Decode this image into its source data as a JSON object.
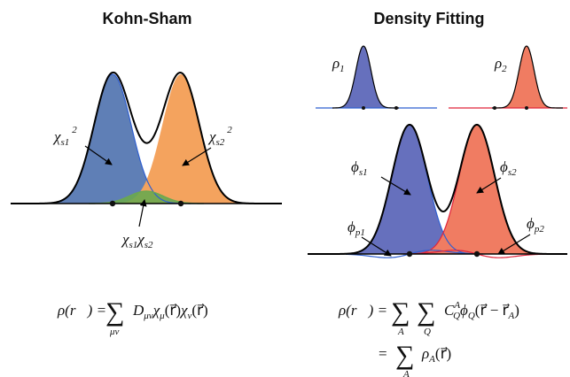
{
  "colors": {
    "blue_fill": "#5f7fb6",
    "orange_fill": "#f4a35e",
    "green_fill": "#6aa84f",
    "violet_fill": "#6670bd",
    "salmon_fill": "#f07c62",
    "blue_line": "#2f5fd0",
    "red_line": "#e0243b",
    "black_line": "#000000"
  },
  "left": {
    "title": "Kohn-Sham",
    "label_chi_s1": "χ",
    "label_chi_s1_sub": "s1",
    "label_chi_s1_sup": "2",
    "label_chi_s2": "χ",
    "label_chi_s2_sub": "s2",
    "label_chi_s2_sup": "2",
    "label_product_a": "χ",
    "label_product_a_sub": "s1",
    "label_product_b": "χ",
    "label_product_b_sub": "s2",
    "equation": {
      "lhs": "ρ(r⃗) =",
      "sum": "∑",
      "sum_lower": "μν",
      "rhs_d": "D",
      "rhs_d_sub": "μν",
      "rhs_chi1": "χ",
      "rhs_chi1_sub": "μ",
      "rhs_arg1": "(r⃗)",
      "rhs_chi2": "χ",
      "rhs_chi2_sub": "ν",
      "rhs_arg2": "(r⃗)"
    }
  },
  "right": {
    "title": "Density Fitting",
    "rho1": "ρ",
    "rho1_sub": "1",
    "rho2": "ρ",
    "rho2_sub": "2",
    "phi_s1": "ϕ",
    "phi_s1_sub": "s1",
    "phi_s2": "ϕ",
    "phi_s2_sub": "s2",
    "phi_p1": "ϕ",
    "phi_p1_sub": "p1",
    "phi_p2": "ϕ",
    "phi_p2_sub": "p2",
    "equation": {
      "lhs": "ρ(r⃗) =",
      "sum1": "∑",
      "sum1_lower": "A",
      "sum2": "∑",
      "sum2_lower": "Q",
      "c": "C",
      "c_sub": "Q",
      "c_sup": "A",
      "phi": "ϕ",
      "phi_sub": "Q",
      "arg": "(r⃗ − r⃗",
      "arg_sub": "A",
      "arg_close": ")",
      "line2_eq": "=",
      "sum3": "∑",
      "sum3_lower": "A",
      "rho": "ρ",
      "rho_sub": "A",
      "rho_arg": "(r⃗)"
    }
  }
}
